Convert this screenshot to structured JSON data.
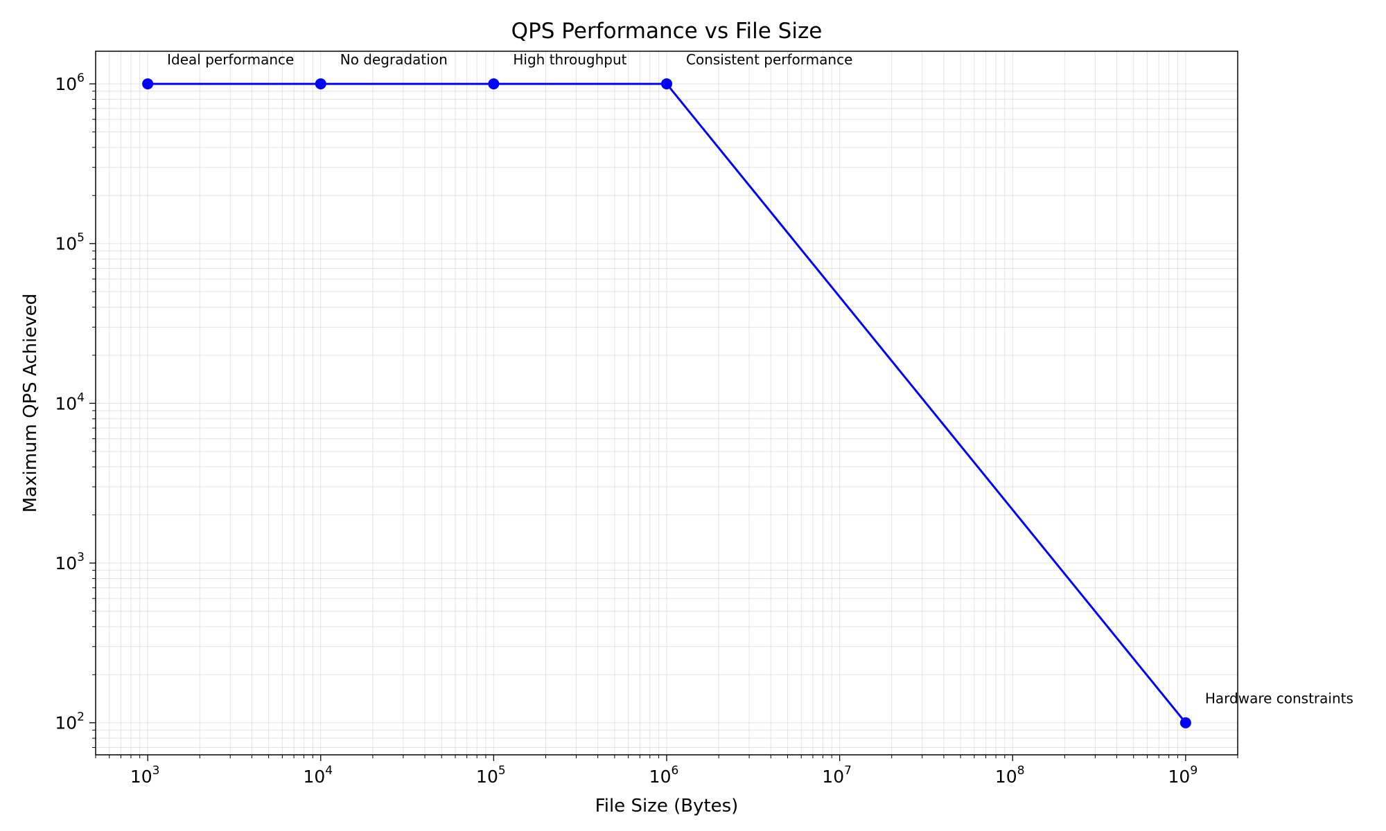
{
  "chart_data": {
    "type": "line",
    "title": "QPS Performance vs File Size",
    "xlabel": "File Size (Bytes)",
    "ylabel": "Maximum QPS Achieved",
    "xscale": "log",
    "yscale": "log",
    "xlim": [
      500,
      2000000000
    ],
    "ylim": [
      63,
      1600000
    ],
    "grid": true,
    "x_ticks": [
      {
        "base": "10",
        "exp": "3",
        "value": 1000
      },
      {
        "base": "10",
        "exp": "4",
        "value": 10000
      },
      {
        "base": "10",
        "exp": "5",
        "value": 100000
      },
      {
        "base": "10",
        "exp": "6",
        "value": 1000000
      },
      {
        "base": "10",
        "exp": "7",
        "value": 10000000
      },
      {
        "base": "10",
        "exp": "8",
        "value": 100000000
      },
      {
        "base": "10",
        "exp": "9",
        "value": 1000000000
      }
    ],
    "y_ticks": [
      {
        "base": "10",
        "exp": "2",
        "value": 100
      },
      {
        "base": "10",
        "exp": "3",
        "value": 1000
      },
      {
        "base": "10",
        "exp": "4",
        "value": 10000
      },
      {
        "base": "10",
        "exp": "5",
        "value": 100000
      },
      {
        "base": "10",
        "exp": "6",
        "value": 1000000
      }
    ],
    "series": [
      {
        "color": "#0000ff",
        "marker": "circle",
        "x": [
          1000,
          10000,
          100000,
          1000000,
          1000000000
        ],
        "y": [
          1000000,
          1000000,
          1000000,
          1000000,
          100
        ]
      }
    ],
    "annotations": [
      {
        "text": "Ideal performance",
        "x": 1000,
        "y": 1000000
      },
      {
        "text": "No degradation",
        "x": 10000,
        "y": 1000000
      },
      {
        "text": "High throughput",
        "x": 100000,
        "y": 1000000
      },
      {
        "text": "Consistent performance",
        "x": 1000000,
        "y": 1000000
      },
      {
        "text": "Hardware constraints",
        "x": 1000000000,
        "y": 100
      }
    ]
  }
}
